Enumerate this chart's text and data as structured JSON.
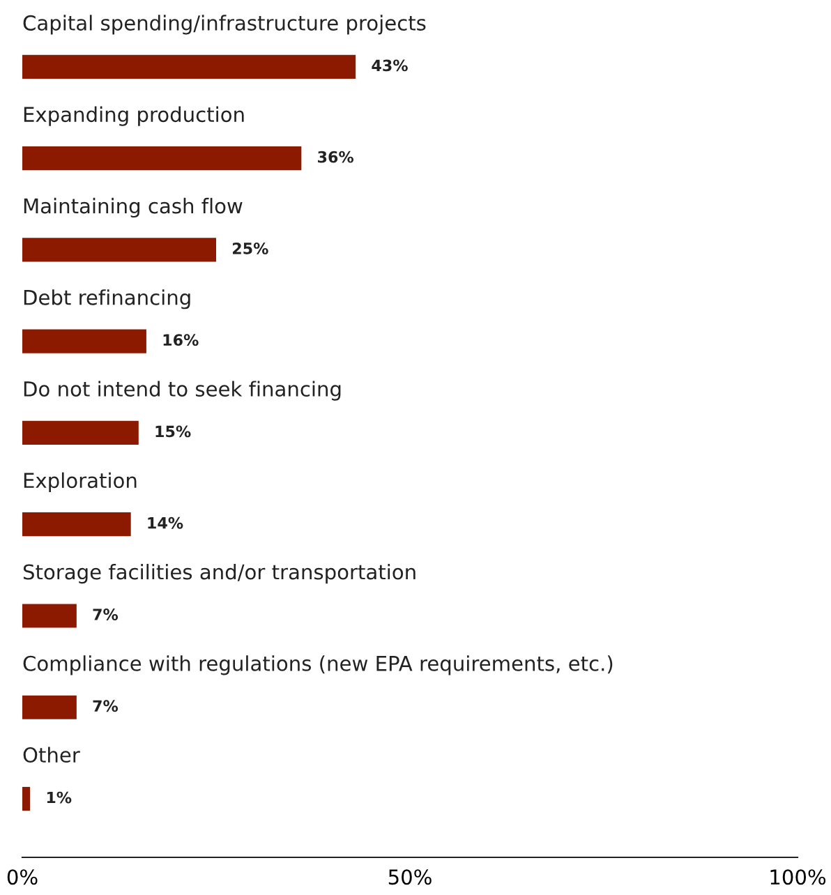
{
  "chart_data": {
    "type": "bar",
    "orientation": "horizontal",
    "categories": [
      "Capital spending/infrastructure projects",
      "Expanding production",
      "Maintaining cash flow",
      "Debt refinancing",
      "Do not intend to seek financing",
      "Exploration",
      "Storage facilities and/or transportation",
      "Compliance with regulations (new EPA requirements, etc.)",
      "Other"
    ],
    "values": [
      43,
      36,
      25,
      16,
      15,
      14,
      7,
      7,
      1
    ],
    "value_labels": [
      "43%",
      "36%",
      "25%",
      "16%",
      "15%",
      "14%",
      "7%",
      "7%",
      "1%"
    ],
    "color": "#8b1a00",
    "xlim": [
      0,
      100
    ],
    "xticks": [
      {
        "value": 0,
        "label": "0%"
      },
      {
        "value": 50,
        "label": "50%"
      },
      {
        "value": 100,
        "label": "100%"
      }
    ],
    "grid": false,
    "legend": false
  }
}
